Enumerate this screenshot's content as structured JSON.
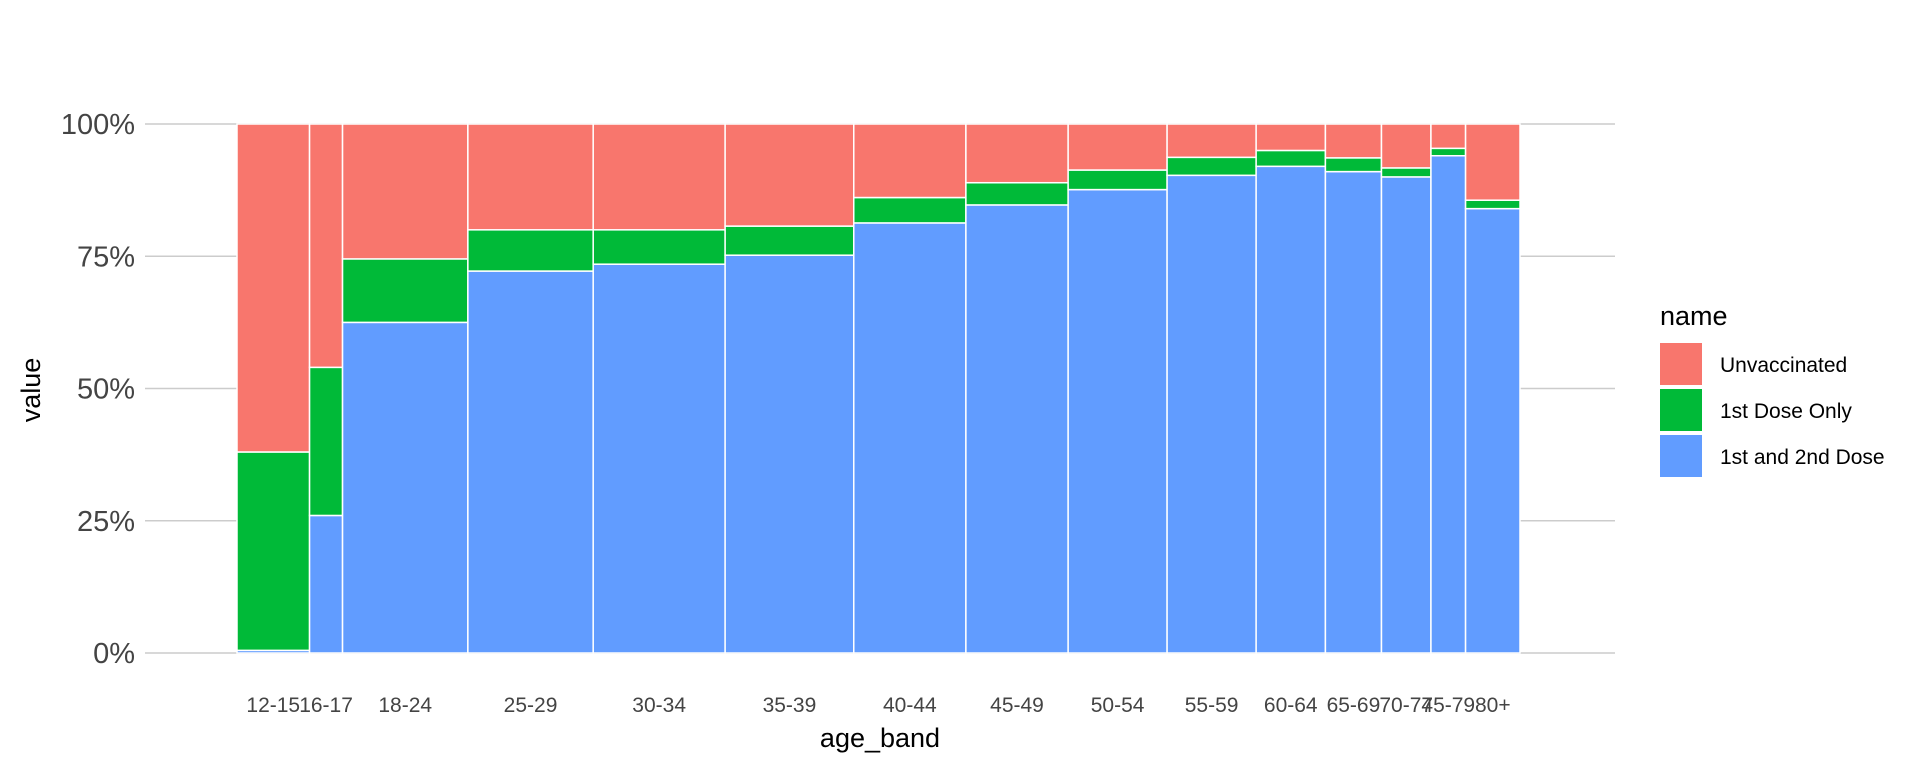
{
  "chart_data": {
    "type": "bar",
    "variant": "stacked-100-percent-variable-width",
    "xlabel": "age_band",
    "ylabel": "value",
    "ylim": [
      0,
      1
    ],
    "y_ticks": [
      {
        "value": 0,
        "label": "0%"
      },
      {
        "value": 0.25,
        "label": "25%"
      },
      {
        "value": 0.5,
        "label": "50%"
      },
      {
        "value": 0.75,
        "label": "75%"
      },
      {
        "value": 1,
        "label": "100%"
      }
    ],
    "grid": "horizontal",
    "legend": {
      "title": "name",
      "position": "right",
      "entries": [
        "Unvaccinated",
        "1st Dose Only",
        "1st and 2nd Dose"
      ]
    },
    "series_colors": {
      "Unvaccinated": "#F8766D",
      "1st Dose Only": "#00BA38",
      "1st and 2nd Dose": "#619CFF"
    },
    "categories": [
      "12-15",
      "16-17",
      "18-24",
      "25-29",
      "30-34",
      "35-39",
      "40-44",
      "45-49",
      "50-54",
      "55-59",
      "60-64",
      "65-69",
      "70-74",
      "75-79",
      "80+"
    ],
    "bar_widths": [
      2.2,
      1.0,
      3.8,
      3.8,
      4.0,
      3.9,
      3.4,
      3.1,
      3.0,
      2.7,
      2.1,
      1.7,
      1.5,
      1.05,
      1.65
    ],
    "series": [
      {
        "name": "1st and 2nd Dose",
        "values": [
          0.005,
          0.26,
          0.625,
          0.722,
          0.735,
          0.752,
          0.813,
          0.847,
          0.876,
          0.903,
          0.92,
          0.91,
          0.9,
          0.94,
          0.84
        ]
      },
      {
        "name": "1st Dose Only",
        "values": [
          0.375,
          0.28,
          0.12,
          0.078,
          0.065,
          0.055,
          0.048,
          0.042,
          0.037,
          0.034,
          0.03,
          0.026,
          0.017,
          0.014,
          0.016
        ]
      },
      {
        "name": "Unvaccinated",
        "values": [
          0.62,
          0.46,
          0.255,
          0.2,
          0.2,
          0.193,
          0.139,
          0.111,
          0.087,
          0.063,
          0.05,
          0.064,
          0.083,
          0.046,
          0.144
        ]
      }
    ]
  }
}
